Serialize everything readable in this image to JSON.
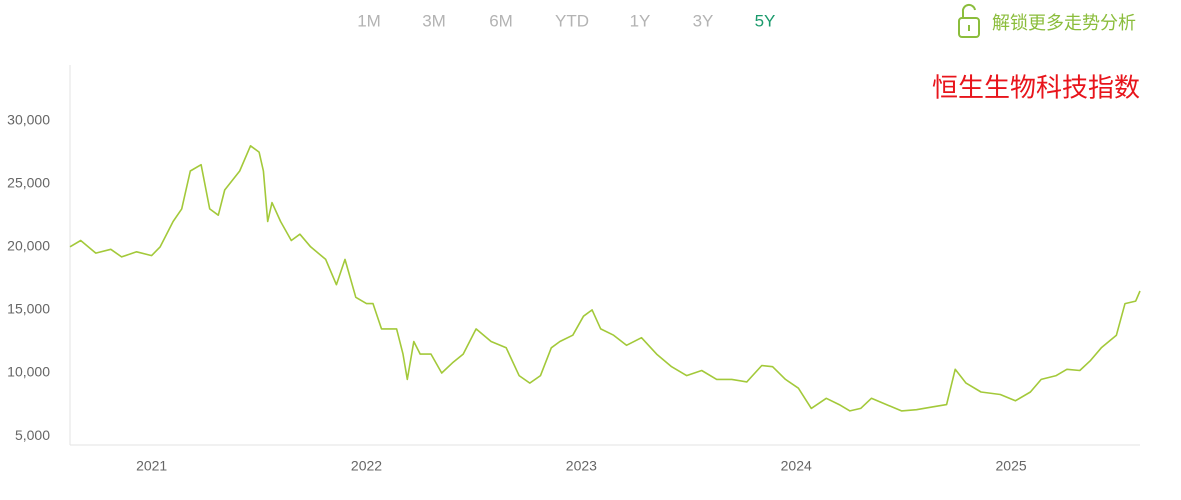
{
  "toolbar": {
    "ranges": [
      "1M",
      "3M",
      "6M",
      "YTD",
      "1Y",
      "3Y",
      "5Y"
    ],
    "active": 6,
    "unlock": "解锁更多走势分析"
  },
  "chart_data": {
    "type": "line",
    "annotation": "恒生生物科技指数",
    "x": [
      2020.62,
      2020.67,
      2020.74,
      2020.81,
      2020.86,
      2020.93,
      2021.0,
      2021.04,
      2021.1,
      2021.14,
      2021.18,
      2021.23,
      2021.27,
      2021.31,
      2021.34,
      2021.41,
      2021.46,
      2021.5,
      2021.52,
      2021.54,
      2021.56,
      2021.6,
      2021.65,
      2021.69,
      2021.74,
      2021.81,
      2021.86,
      2021.9,
      2021.95,
      2022.0,
      2022.03,
      2022.07,
      2022.14,
      2022.17,
      2022.19,
      2022.22,
      2022.25,
      2022.3,
      2022.35,
      2022.4,
      2022.45,
      2022.51,
      2022.58,
      2022.65,
      2022.71,
      2022.76,
      2022.81,
      2022.86,
      2022.9,
      2022.96,
      2023.01,
      2023.05,
      2023.09,
      2023.15,
      2023.21,
      2023.28,
      2023.35,
      2023.42,
      2023.49,
      2023.56,
      2023.63,
      2023.7,
      2023.77,
      2023.84,
      2023.89,
      2023.95,
      2024.01,
      2024.07,
      2024.14,
      2024.2,
      2024.25,
      2024.3,
      2024.35,
      2024.42,
      2024.49,
      2024.56,
      2024.63,
      2024.7,
      2024.74,
      2024.79,
      2024.86,
      2024.95,
      2025.02,
      2025.09,
      2025.14,
      2025.21,
      2025.26,
      2025.32,
      2025.37,
      2025.42,
      2025.49,
      2025.53,
      2025.58,
      2025.6
    ],
    "series": [
      {
        "color": "#a3c93a",
        "values": [
          20000,
          20500,
          19500,
          19800,
          19200,
          19600,
          19300,
          20000,
          22000,
          23000,
          26000,
          26500,
          23000,
          22500,
          24500,
          26000,
          28000,
          27500,
          26000,
          22000,
          23500,
          22000,
          20500,
          21000,
          20000,
          19000,
          17000,
          19000,
          16000,
          15500,
          15500,
          13500,
          13500,
          11500,
          9500,
          12500,
          11500,
          11500,
          10000,
          10800,
          11500,
          13500,
          12500,
          12000,
          9800,
          9200,
          9800,
          12000,
          12500,
          13000,
          14500,
          15000,
          13500,
          13000,
          12200,
          12800,
          11500,
          10500,
          9800,
          10200,
          9500,
          9500,
          9300,
          10600,
          10500,
          9500,
          8800,
          7200,
          8000,
          7500,
          7000,
          7200,
          8000,
          7500,
          7000,
          7100,
          7300,
          7500,
          10300,
          9200,
          8500,
          8300,
          7800,
          8500,
          9500,
          9800,
          10300,
          10200,
          11000,
          12000,
          13000,
          15500,
          15700,
          16500
        ]
      }
    ],
    "xlim": [
      2020.62,
      2025.6
    ],
    "xticks": [
      2021,
      2022,
      2023,
      2024,
      2025
    ],
    "ylim": [
      4300,
      34400
    ],
    "yticks": [
      {
        "value": 5000,
        "label": "5,000"
      },
      {
        "value": 10000,
        "label": "10,000"
      },
      {
        "value": 15000,
        "label": "15,000"
      },
      {
        "value": 20000,
        "label": "20,000"
      },
      {
        "value": 25000,
        "label": "25,000"
      },
      {
        "value": 30000,
        "label": "30,000"
      }
    ],
    "grid": false
  }
}
